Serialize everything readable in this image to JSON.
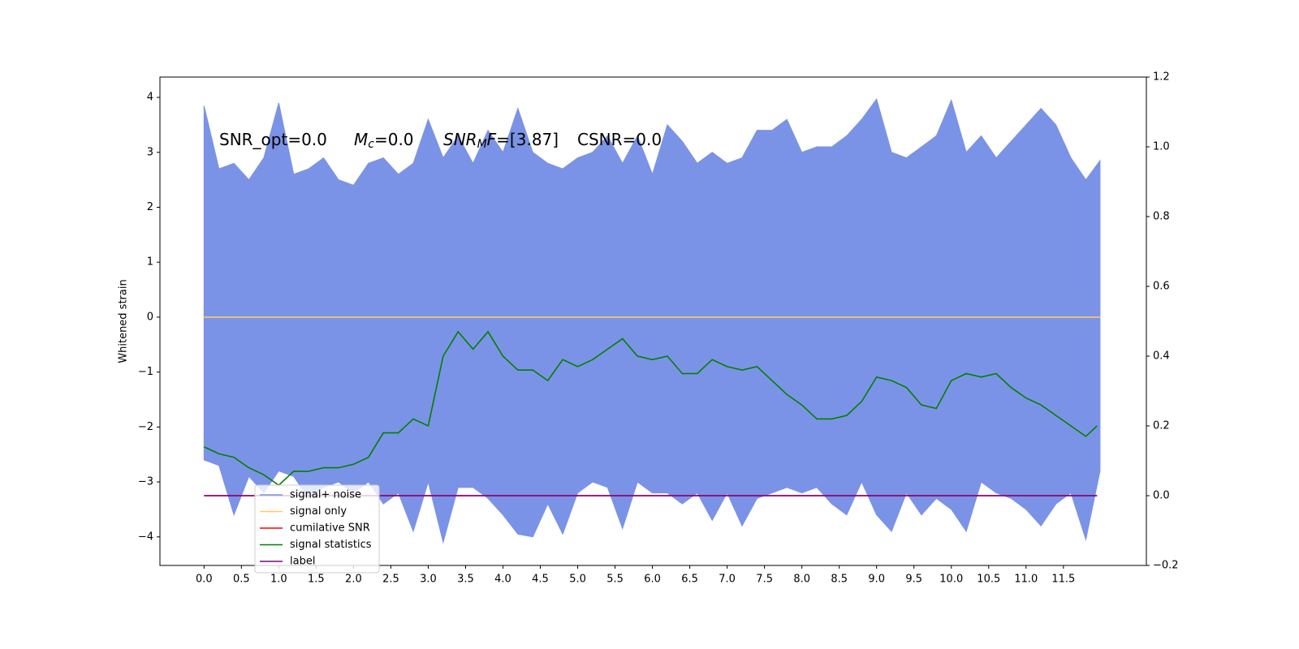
{
  "chart_data": {
    "type": "line",
    "annotations": [
      [
        {
          "t": "SNR_opt=0.0"
        }
      ],
      [
        {
          "t": "M",
          "style": "italic"
        },
        {
          "t": "c",
          "style": "sub"
        },
        {
          "t": "=0.0"
        }
      ],
      [
        {
          "t": "SNR",
          "style": "italic"
        },
        {
          "t": "M",
          "style": "sub"
        },
        {
          "t": "F",
          "style": "italic"
        },
        {
          "t": "=[3.87]"
        }
      ],
      [
        {
          "t": "CSNR=0.0"
        }
      ]
    ],
    "ylabel": "Whitened strain",
    "xlim": [
      -0.59,
      12.61
    ],
    "ylim": [
      -4.52,
      4.37
    ],
    "y2lim": [
      -0.2,
      1.2
    ],
    "xticks": [
      {
        "value": 0,
        "label": "0.0"
      },
      0.5,
      {
        "value": 1,
        "label": "1.0"
      },
      1.5,
      {
        "value": 2,
        "label": "2.0"
      },
      2.5,
      {
        "value": 3,
        "label": "3.0"
      },
      3.5,
      {
        "value": 4,
        "label": "4.0"
      },
      4.5,
      {
        "value": 5,
        "label": "5.0"
      },
      5.5,
      {
        "value": 6,
        "label": "6.0"
      },
      6.5,
      {
        "value": 7,
        "label": "7.0"
      },
      7.5,
      {
        "value": 8,
        "label": "8.0"
      },
      8.5,
      {
        "value": 9,
        "label": "9.0"
      },
      9.5,
      {
        "value": 10,
        "label": "10.0"
      },
      10.5,
      {
        "value": 11,
        "label": "11.0"
      },
      11.5
    ],
    "yticks": [
      4,
      3,
      2,
      1,
      0,
      {
        "value": -1,
        "label": "−1"
      },
      {
        "value": -2,
        "label": "−2"
      },
      {
        "value": -3,
        "label": "−3"
      },
      {
        "value": -4,
        "label": "−4"
      }
    ],
    "y2ticks": [
      1.2,
      {
        "value": 1,
        "label": "1.0"
      },
      0.8,
      0.6,
      0.4,
      0.2,
      {
        "value": 0,
        "label": "0.0"
      },
      {
        "value": -0.2,
        "label": "−0.2"
      }
    ],
    "legend": "lower left",
    "series": [
      {
        "name": "signal+ noise",
        "color": "#7b93e6",
        "kind": "envelope",
        "x": [
          0,
          0.2,
          0.4,
          0.6,
          0.8,
          1,
          1.2,
          1.4,
          1.6,
          1.8,
          2,
          2.2,
          2.4,
          2.6,
          2.8,
          3,
          3.2,
          3.4,
          3.6,
          3.8,
          4,
          4.2,
          4.4,
          4.6,
          4.8,
          5,
          5.2,
          5.4,
          5.6,
          5.8,
          6,
          6.2,
          6.4,
          6.6,
          6.8,
          7,
          7.2,
          7.4,
          7.6,
          7.8,
          8,
          8.2,
          8.4,
          8.6,
          8.8,
          9,
          9.2,
          9.4,
          9.6,
          9.8,
          10,
          10.2,
          10.4,
          10.6,
          10.8,
          11,
          11.2,
          11.4,
          11.6,
          11.8,
          11.99
        ],
        "upper": [
          3.85,
          2.7,
          2.8,
          2.5,
          2.9,
          3.9,
          2.6,
          2.7,
          2.9,
          2.5,
          2.4,
          2.8,
          2.9,
          2.6,
          2.8,
          3.6,
          2.9,
          3.3,
          2.8,
          3.4,
          3.0,
          3.8,
          3.0,
          2.8,
          2.7,
          2.9,
          3.0,
          3.3,
          2.8,
          3.3,
          2.6,
          3.5,
          3.2,
          2.8,
          3.0,
          2.8,
          2.9,
          3.4,
          3.4,
          3.6,
          3.0,
          3.1,
          3.1,
          3.3,
          3.6,
          3.97,
          3.0,
          2.9,
          3.1,
          3.3,
          3.95,
          3.0,
          3.3,
          2.9,
          3.2,
          3.5,
          3.8,
          3.5,
          2.9,
          2.5,
          2.85
        ],
        "lower": [
          -2.6,
          -2.7,
          -3.6,
          -2.9,
          -3.2,
          -2.8,
          -2.9,
          -3.3,
          -3.1,
          -3.0,
          -3.2,
          -3.0,
          -3.4,
          -3.2,
          -3.9,
          -3.0,
          -4.1,
          -3.1,
          -3.1,
          -3.3,
          -3.6,
          -3.95,
          -4.0,
          -3.4,
          -3.95,
          -3.2,
          -3.0,
          -3.1,
          -3.85,
          -3.0,
          -3.2,
          -3.2,
          -3.4,
          -3.2,
          -3.7,
          -3.2,
          -3.8,
          -3.3,
          -3.2,
          -3.1,
          -3.2,
          -3.1,
          -3.4,
          -3.6,
          -3.0,
          -3.6,
          -3.9,
          -3.2,
          -3.6,
          -3.3,
          -3.5,
          -3.9,
          -3.0,
          -3.2,
          -3.3,
          -3.5,
          -3.8,
          -3.4,
          -3.2,
          -4.05,
          -2.8
        ]
      },
      {
        "name": "signal only",
        "color": "#ffc966",
        "x": [
          0,
          11.99
        ],
        "values": [
          0,
          0
        ]
      },
      {
        "name": "cumilative SNR",
        "color": "#ff0000",
        "axis": "y2",
        "x": [
          0,
          11.95
        ],
        "values": [
          0,
          0
        ]
      },
      {
        "name": "signal statistics",
        "color": "#008000",
        "axis": "y2",
        "x": [
          0,
          0.2,
          0.4,
          0.6,
          0.8,
          1,
          1.2,
          1.4,
          1.6,
          1.8,
          2,
          2.2,
          2.4,
          2.6,
          2.8,
          3,
          3.2,
          3.4,
          3.6,
          3.8,
          4,
          4.2,
          4.4,
          4.6,
          4.8,
          5,
          5.2,
          5.4,
          5.6,
          5.8,
          6,
          6.2,
          6.4,
          6.6,
          6.8,
          7,
          7.2,
          7.4,
          7.6,
          7.8,
          8,
          8.2,
          8.4,
          8.6,
          8.8,
          9,
          9.2,
          9.4,
          9.6,
          9.8,
          10,
          10.2,
          10.4,
          10.6,
          10.8,
          11,
          11.2,
          11.4,
          11.6,
          11.8,
          11.95
        ],
        "values": [
          0.14,
          0.12,
          0.11,
          0.08,
          0.06,
          0.03,
          0.07,
          0.07,
          0.08,
          0.08,
          0.09,
          0.11,
          0.18,
          0.18,
          0.22,
          0.2,
          0.4,
          0.47,
          0.42,
          0.47,
          0.4,
          0.36,
          0.36,
          0.33,
          0.39,
          0.37,
          0.39,
          0.42,
          0.45,
          0.4,
          0.39,
          0.4,
          0.35,
          0.35,
          0.39,
          0.37,
          0.36,
          0.37,
          0.33,
          0.29,
          0.26,
          0.22,
          0.22,
          0.23,
          0.27,
          0.34,
          0.33,
          0.31,
          0.26,
          0.25,
          0.33,
          0.35,
          0.34,
          0.35,
          0.31,
          0.28,
          0.26,
          0.23,
          0.2,
          0.17,
          0.2
        ]
      },
      {
        "name": "label",
        "color": "#800080",
        "axis": "y2",
        "x": [
          0,
          11.95
        ],
        "values": [
          0,
          0
        ]
      }
    ]
  }
}
